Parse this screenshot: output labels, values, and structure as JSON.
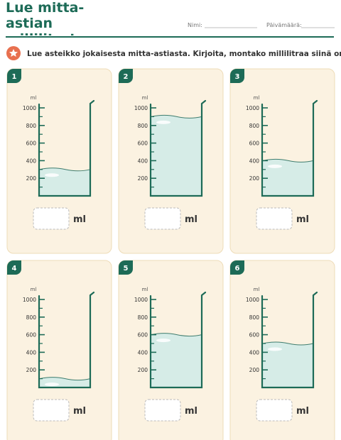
{
  "header": {
    "title": "Lue mitta-astian millilitrat",
    "name_label": "Nimi:",
    "date_label": "Päivämäärä:"
  },
  "instruction": "Lue asteikko jokaisesta mitta-astiasta. Kirjoita, montako millilitraa siinä on.",
  "scale": {
    "unit": "ml",
    "range": [
      0,
      1000
    ],
    "ticks": [
      200,
      400,
      600,
      800,
      1000
    ]
  },
  "answer_unit": "ml",
  "cards": [
    {
      "number": 1,
      "level": 300
    },
    {
      "number": 2,
      "level": 900
    },
    {
      "number": 3,
      "level": 400
    },
    {
      "number": 4,
      "level": 100
    },
    {
      "number": 5,
      "level": 600
    },
    {
      "number": 6,
      "level": 500
    }
  ]
}
